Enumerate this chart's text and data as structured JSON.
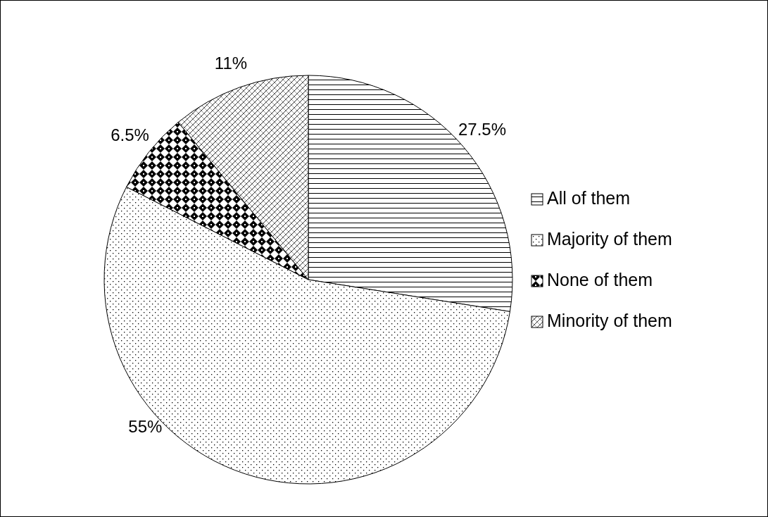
{
  "chart_data": {
    "type": "pie",
    "categories": [
      "All of them",
      "Majority of them",
      "None of them",
      "Minority of them"
    ],
    "values": [
      27.5,
      55,
      6.5,
      11
    ],
    "colors": [
      "#000000",
      "#000000",
      "#000000",
      "#000000"
    ],
    "value_labels": [
      "27.5%",
      "55%",
      "6.5%",
      "11%"
    ],
    "legend": "right"
  }
}
